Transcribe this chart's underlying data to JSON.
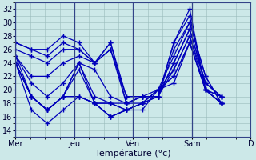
{
  "title": "Température (°c)",
  "background_color": "#cce8e8",
  "grid_color": "#99bbbb",
  "line_color": "#0000bb",
  "xlim": [
    0,
    16
  ],
  "ylim": [
    13,
    33
  ],
  "yticks": [
    14,
    16,
    18,
    20,
    22,
    24,
    26,
    28,
    30,
    32
  ],
  "day_labels": [
    "Mer",
    "Jeu",
    "Ven",
    "Sam",
    "D"
  ],
  "day_positions": [
    0,
    4,
    8,
    12,
    16
  ],
  "series": [
    [
      27,
      26,
      26,
      28,
      27,
      24,
      27,
      19,
      19,
      19,
      27,
      32,
      20,
      18
    ],
    [
      27,
      26,
      25,
      27,
      26,
      24,
      26,
      19,
      19,
      19,
      27,
      31,
      20,
      18
    ],
    [
      26,
      25,
      24,
      26,
      26,
      24,
      26,
      18,
      19,
      19,
      26,
      30,
      22,
      18
    ],
    [
      25,
      22,
      22,
      24,
      25,
      24,
      27,
      18,
      19,
      20,
      25,
      30,
      22,
      18
    ],
    [
      25,
      21,
      19,
      21,
      24,
      23,
      19,
      18,
      19,
      19,
      24,
      29,
      21,
      19
    ],
    [
      25,
      19,
      17,
      19,
      24,
      19,
      18,
      18,
      18,
      19,
      24,
      29,
      21,
      19
    ],
    [
      24,
      19,
      17,
      19,
      24,
      18,
      18,
      17,
      18,
      19,
      23,
      28,
      21,
      19
    ],
    [
      24,
      19,
      17,
      19,
      23,
      18,
      18,
      17,
      18,
      20,
      23,
      28,
      20,
      19
    ],
    [
      24,
      19,
      17,
      19,
      19,
      18,
      16,
      17,
      18,
      20,
      22,
      27,
      20,
      19
    ],
    [
      24,
      19,
      17,
      19,
      19,
      18,
      16,
      17,
      18,
      20,
      22,
      27,
      20,
      18
    ],
    [
      24,
      17,
      15,
      17,
      19,
      18,
      16,
      17,
      17,
      20,
      21,
      27,
      20,
      18
    ]
  ],
  "x_per_day": 4,
  "n_days": 4,
  "marker": "+",
  "marker_size": 4,
  "linewidth": 0.9,
  "tick_labelsize": 7,
  "xlabel_fontsize": 8,
  "separator_color": "#334488",
  "separator_linewidth": 0.9
}
